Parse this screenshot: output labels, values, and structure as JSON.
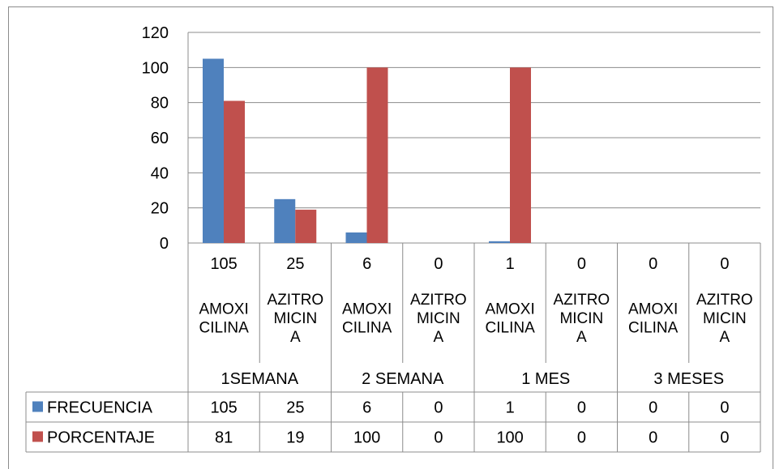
{
  "chart_data": {
    "type": "bar",
    "title": "",
    "xlabel": "",
    "ylabel": "",
    "ylim": [
      0,
      120
    ],
    "yticks": [
      0,
      20,
      40,
      60,
      80,
      100,
      120
    ],
    "grid": true,
    "legend": "data-table-left",
    "groups": [
      {
        "label": "1SEMANA",
        "categories": [
          "AMOXICILINA",
          "AZITROMICINA"
        ]
      },
      {
        "label": "2 SEMANA",
        "categories": [
          "AMOXICILINA",
          "AZITROMICINA"
        ]
      },
      {
        "label": "1 MES",
        "categories": [
          "AMOXICILINA",
          "AZITROMICINA"
        ]
      },
      {
        "label": "3 MESES",
        "categories": [
          "AMOXICILINA",
          "AZITROMICINA"
        ]
      }
    ],
    "category_label_lines": {
      "AMOXICILINA": [
        "AMOXI",
        "CILINA"
      ],
      "AZITROMICINA": [
        "AZITRO",
        "MICIN",
        "A"
      ]
    },
    "top_labels": [
      "105",
      "25",
      "6",
      "0",
      "1",
      "0",
      "0",
      "0"
    ],
    "series": [
      {
        "name": "FRECUENCIA",
        "color": "#4f81bd",
        "values": [
          105,
          25,
          6,
          0,
          1,
          0,
          0,
          0
        ]
      },
      {
        "name": "PORCENTAJE",
        "color": "#c0504d",
        "values": [
          81,
          19,
          100,
          0,
          100,
          0,
          0,
          0
        ]
      }
    ]
  }
}
